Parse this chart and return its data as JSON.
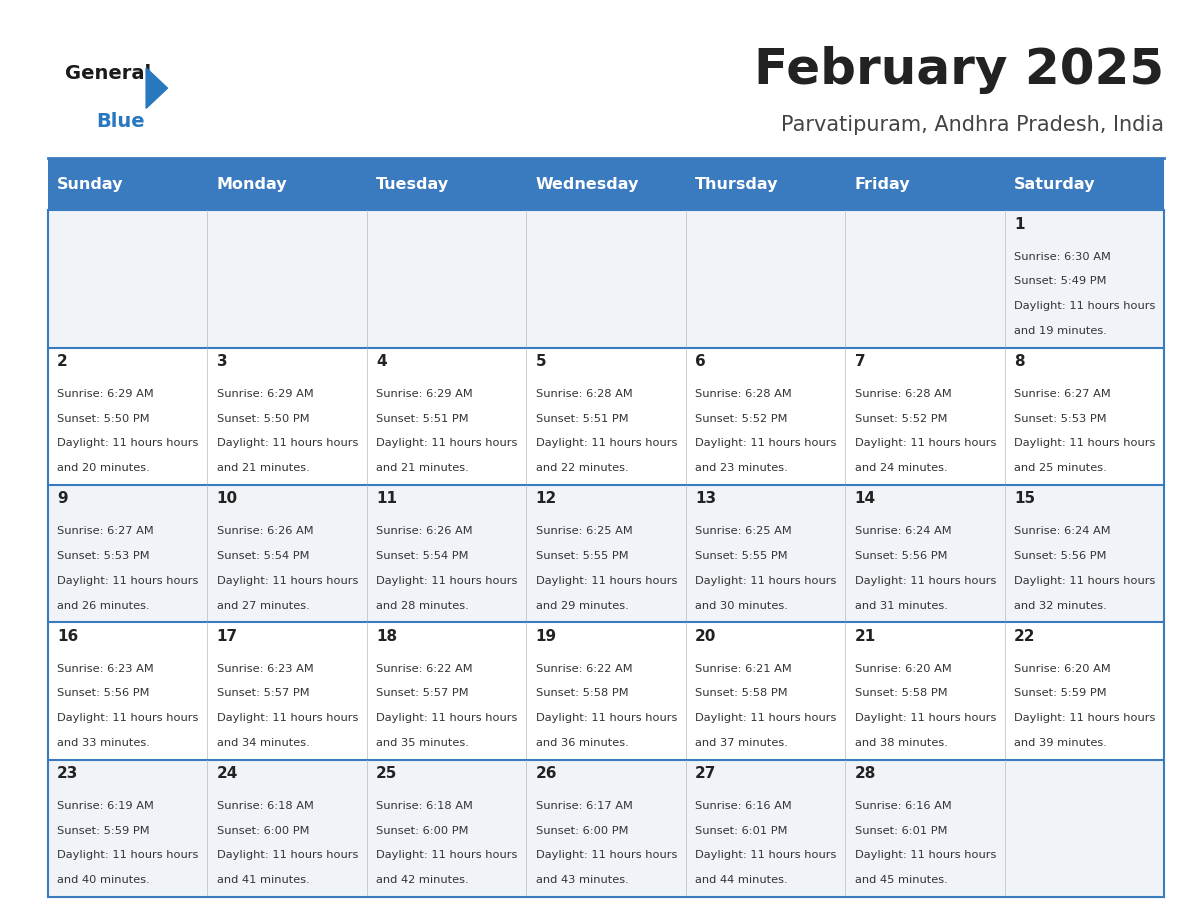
{
  "title": "February 2025",
  "subtitle": "Parvatipuram, Andhra Pradesh, India",
  "header_bg": "#3a7abf",
  "header_text": "#ffffff",
  "odd_row_bg": "#f0f4f8",
  "even_row_bg": "#ffffff",
  "days_of_week": [
    "Sunday",
    "Monday",
    "Tuesday",
    "Wednesday",
    "Thursday",
    "Friday",
    "Saturday"
  ],
  "calendar": [
    [
      null,
      null,
      null,
      null,
      null,
      null,
      {
        "day": 1,
        "sunrise": "6:30 AM",
        "sunset": "5:49 PM",
        "daylight": "11 hours and 19 minutes."
      }
    ],
    [
      {
        "day": 2,
        "sunrise": "6:29 AM",
        "sunset": "5:50 PM",
        "daylight": "11 hours and 20 minutes."
      },
      {
        "day": 3,
        "sunrise": "6:29 AM",
        "sunset": "5:50 PM",
        "daylight": "11 hours and 21 minutes."
      },
      {
        "day": 4,
        "sunrise": "6:29 AM",
        "sunset": "5:51 PM",
        "daylight": "11 hours and 21 minutes."
      },
      {
        "day": 5,
        "sunrise": "6:28 AM",
        "sunset": "5:51 PM",
        "daylight": "11 hours and 22 minutes."
      },
      {
        "day": 6,
        "sunrise": "6:28 AM",
        "sunset": "5:52 PM",
        "daylight": "11 hours and 23 minutes."
      },
      {
        "day": 7,
        "sunrise": "6:28 AM",
        "sunset": "5:52 PM",
        "daylight": "11 hours and 24 minutes."
      },
      {
        "day": 8,
        "sunrise": "6:27 AM",
        "sunset": "5:53 PM",
        "daylight": "11 hours and 25 minutes."
      }
    ],
    [
      {
        "day": 9,
        "sunrise": "6:27 AM",
        "sunset": "5:53 PM",
        "daylight": "11 hours and 26 minutes."
      },
      {
        "day": 10,
        "sunrise": "6:26 AM",
        "sunset": "5:54 PM",
        "daylight": "11 hours and 27 minutes."
      },
      {
        "day": 11,
        "sunrise": "6:26 AM",
        "sunset": "5:54 PM",
        "daylight": "11 hours and 28 minutes."
      },
      {
        "day": 12,
        "sunrise": "6:25 AM",
        "sunset": "5:55 PM",
        "daylight": "11 hours and 29 minutes."
      },
      {
        "day": 13,
        "sunrise": "6:25 AM",
        "sunset": "5:55 PM",
        "daylight": "11 hours and 30 minutes."
      },
      {
        "day": 14,
        "sunrise": "6:24 AM",
        "sunset": "5:56 PM",
        "daylight": "11 hours and 31 minutes."
      },
      {
        "day": 15,
        "sunrise": "6:24 AM",
        "sunset": "5:56 PM",
        "daylight": "11 hours and 32 minutes."
      }
    ],
    [
      {
        "day": 16,
        "sunrise": "6:23 AM",
        "sunset": "5:56 PM",
        "daylight": "11 hours and 33 minutes."
      },
      {
        "day": 17,
        "sunrise": "6:23 AM",
        "sunset": "5:57 PM",
        "daylight": "11 hours and 34 minutes."
      },
      {
        "day": 18,
        "sunrise": "6:22 AM",
        "sunset": "5:57 PM",
        "daylight": "11 hours and 35 minutes."
      },
      {
        "day": 19,
        "sunrise": "6:22 AM",
        "sunset": "5:58 PM",
        "daylight": "11 hours and 36 minutes."
      },
      {
        "day": 20,
        "sunrise": "6:21 AM",
        "sunset": "5:58 PM",
        "daylight": "11 hours and 37 minutes."
      },
      {
        "day": 21,
        "sunrise": "6:20 AM",
        "sunset": "5:58 PM",
        "daylight": "11 hours and 38 minutes."
      },
      {
        "day": 22,
        "sunrise": "6:20 AM",
        "sunset": "5:59 PM",
        "daylight": "11 hours and 39 minutes."
      }
    ],
    [
      {
        "day": 23,
        "sunrise": "6:19 AM",
        "sunset": "5:59 PM",
        "daylight": "11 hours and 40 minutes."
      },
      {
        "day": 24,
        "sunrise": "6:18 AM",
        "sunset": "6:00 PM",
        "daylight": "11 hours and 41 minutes."
      },
      {
        "day": 25,
        "sunrise": "6:18 AM",
        "sunset": "6:00 PM",
        "daylight": "11 hours and 42 minutes."
      },
      {
        "day": 26,
        "sunrise": "6:17 AM",
        "sunset": "6:00 PM",
        "daylight": "11 hours and 43 minutes."
      },
      {
        "day": 27,
        "sunrise": "6:16 AM",
        "sunset": "6:01 PM",
        "daylight": "11 hours and 44 minutes."
      },
      {
        "day": 28,
        "sunrise": "6:16 AM",
        "sunset": "6:01 PM",
        "daylight": "11 hours and 45 minutes."
      },
      null
    ]
  ],
  "logo_general_color": "#1a1a1a",
  "logo_blue_color": "#2878c0",
  "logo_triangle_color": "#2878c0",
  "divider_color": "#3a7abf",
  "day_number_color": "#222222",
  "info_text_color": "#333333",
  "title_color": "#222222",
  "subtitle_color": "#444444"
}
